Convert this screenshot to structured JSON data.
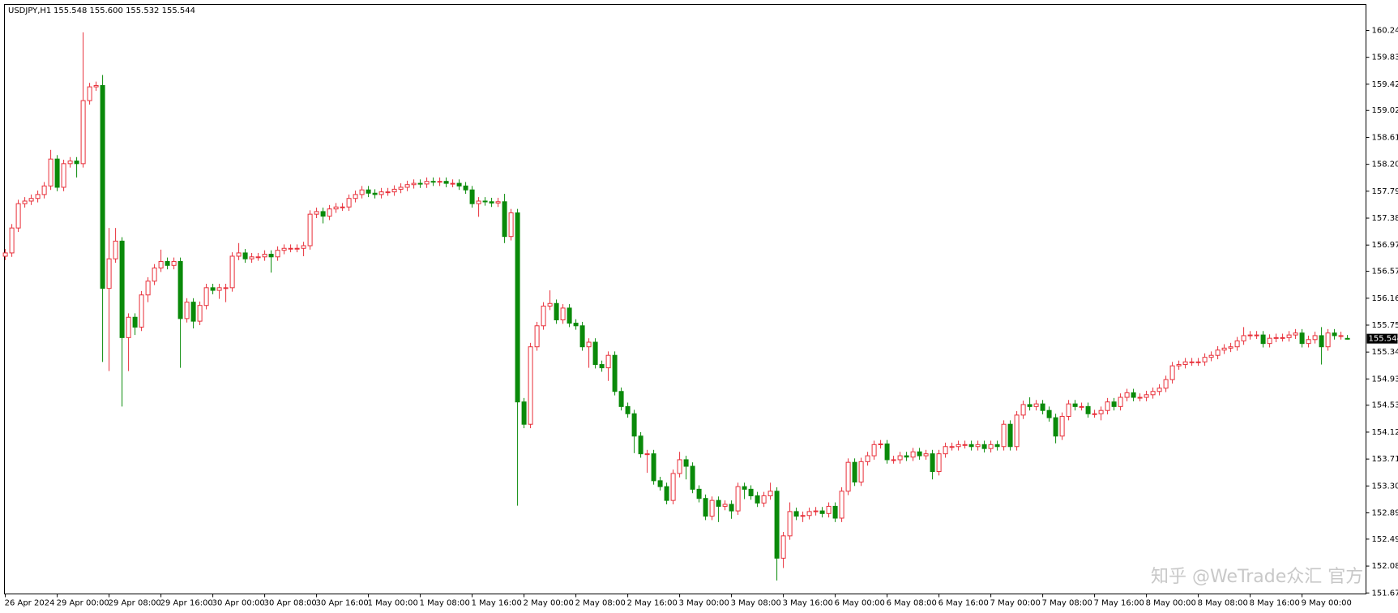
{
  "chart_data": {
    "type": "candlestick",
    "title": "USDJPY,H1",
    "title_values": "155.548 155.600 155.532 155.544",
    "watermark": "知乎 @WeTrade众汇 官方",
    "up_color": "#e8303a",
    "down_color": "#0a8a0a",
    "ylim": [
      151.655,
      160.635
    ],
    "yticks": [
      {
        "value": 151.67,
        "label": "151.670"
      },
      {
        "value": 152.08,
        "label": "152.080"
      },
      {
        "value": 152.49,
        "label": "152.490"
      },
      {
        "value": 152.89,
        "label": "152.890"
      },
      {
        "value": 153.3,
        "label": "153.300"
      },
      {
        "value": 153.71,
        "label": "153.710"
      },
      {
        "value": 154.12,
        "label": "154.120"
      },
      {
        "value": 154.53,
        "label": "154.530"
      },
      {
        "value": 154.93,
        "label": "154.930"
      },
      {
        "value": 155.34,
        "label": "155.340"
      },
      {
        "value": 155.75,
        "label": "155.750"
      },
      {
        "value": 156.16,
        "label": "156.160"
      },
      {
        "value": 156.57,
        "label": "156.570"
      },
      {
        "value": 156.97,
        "label": "156.970"
      },
      {
        "value": 157.38,
        "label": "157.380"
      },
      {
        "value": 157.79,
        "label": "157.790"
      },
      {
        "value": 158.2,
        "label": "158.200"
      },
      {
        "value": 158.61,
        "label": "158.610"
      },
      {
        "value": 159.02,
        "label": "159.020"
      },
      {
        "value": 159.42,
        "label": "159.420"
      },
      {
        "value": 159.83,
        "label": "159.830"
      },
      {
        "value": 160.24,
        "label": "160.240"
      }
    ],
    "last_price": {
      "value": 155.544,
      "label": "155.544"
    },
    "categories": [
      "26 Apr 2024",
      null,
      null,
      null,
      null,
      null,
      null,
      null,
      "29 Apr 00:00",
      null,
      null,
      null,
      null,
      null,
      null,
      null,
      "29 Apr 08:00",
      null,
      null,
      null,
      null,
      null,
      null,
      null,
      "29 Apr 16:00",
      null,
      null,
      null,
      null,
      null,
      null,
      null,
      "30 Apr 00:00",
      null,
      null,
      null,
      null,
      null,
      null,
      null,
      "30 Apr 08:00",
      null,
      null,
      null,
      null,
      null,
      null,
      null,
      "30 Apr 16:00",
      null,
      null,
      null,
      null,
      null,
      null,
      null,
      "1 May 00:00",
      null,
      null,
      null,
      null,
      null,
      null,
      null,
      "1 May 08:00",
      null,
      null,
      null,
      null,
      null,
      null,
      null,
      "1 May 16:00",
      null,
      null,
      null,
      null,
      null,
      null,
      null,
      "2 May 00:00",
      null,
      null,
      null,
      null,
      null,
      null,
      null,
      "2 May 08:00",
      null,
      null,
      null,
      null,
      null,
      null,
      null,
      "2 May 16:00",
      null,
      null,
      null,
      null,
      null,
      null,
      null,
      "3 May 00:00",
      null,
      null,
      null,
      null,
      null,
      null,
      null,
      "3 May 08:00",
      null,
      null,
      null,
      null,
      null,
      null,
      null,
      "3 May 16:00",
      null,
      null,
      null,
      null,
      null,
      null,
      null,
      "6 May 00:00",
      null,
      null,
      null,
      null,
      null,
      null,
      null,
      "6 May 08:00",
      null,
      null,
      null,
      null,
      null,
      null,
      null,
      "6 May 16:00",
      null,
      null,
      null,
      null,
      null,
      null,
      null,
      "7 May 00:00",
      null,
      null,
      null,
      null,
      null,
      null,
      null,
      "7 May 08:00",
      null,
      null,
      null,
      null,
      null,
      null,
      null,
      "7 May 16:00",
      null,
      null,
      null,
      null,
      null,
      null,
      null,
      "8 May 00:00",
      null,
      null,
      null,
      null,
      null,
      null,
      null,
      "8 May 08:00",
      null,
      null,
      null,
      null,
      null,
      null,
      null,
      "8 May 16:00",
      null,
      null,
      null,
      null,
      null,
      null,
      null,
      "9 May 00:00",
      null,
      null,
      null,
      null,
      null,
      null,
      null
    ],
    "open": [
      156.8,
      156.85,
      157.23,
      157.6,
      157.64,
      157.68,
      157.74,
      157.87,
      158.28,
      157.85,
      158.21,
      158.25,
      158.21,
      159.17,
      159.38,
      159.4,
      156.31,
      156.76,
      157.03,
      155.56,
      155.87,
      155.72,
      156.21,
      156.42,
      156.62,
      156.72,
      156.66,
      156.72,
      155.85,
      156.1,
      155.81,
      156.05,
      156.32,
      156.28,
      156.32,
      156.32,
      156.8,
      156.85,
      156.76,
      156.79,
      156.79,
      156.83,
      156.79,
      156.89,
      156.92,
      156.92,
      156.92,
      156.96,
      157.44,
      157.48,
      157.41,
      157.52,
      157.55,
      157.55,
      157.68,
      157.74,
      157.81,
      157.76,
      157.74,
      157.78,
      157.78,
      157.82,
      157.85,
      157.89,
      157.91,
      157.9,
      157.94,
      157.93,
      157.94,
      157.91,
      157.91,
      157.87,
      157.81,
      157.6,
      157.64,
      157.63,
      157.61,
      157.63,
      157.1,
      157.46,
      154.58,
      154.24,
      155.42,
      155.74,
      156.04,
      156.08,
      155.83,
      156.01,
      155.78,
      155.74,
      155.42,
      155.49,
      155.15,
      155.1,
      155.29,
      154.74,
      154.51,
      154.4,
      154.06,
      153.79,
      153.79,
      153.38,
      153.29,
      153.08,
      153.49,
      153.7,
      153.6,
      153.25,
      153.11,
      152.84,
      153.08,
      152.99,
      153.02,
      152.92,
      153.29,
      153.25,
      153.15,
      153.04,
      153.15,
      153.22,
      152.2,
      152.54,
      152.91,
      152.84,
      152.85,
      152.91,
      152.92,
      152.88,
      152.99,
      152.81,
      153.22,
      153.66,
      153.36,
      153.67,
      153.76,
      153.93,
      153.94,
      153.7,
      153.7,
      153.76,
      153.74,
      153.82,
      153.76,
      153.79,
      153.52,
      153.79,
      153.9,
      153.9,
      153.93,
      153.93,
      153.9,
      153.93,
      153.87,
      153.93,
      153.9,
      154.24,
      153.9,
      154.38,
      154.54,
      154.51,
      154.55,
      154.45,
      154.34,
      154.06,
      154.36,
      154.55,
      154.51,
      154.51,
      154.4,
      154.4,
      154.45,
      154.58,
      154.51,
      154.65,
      154.72,
      154.65,
      154.65,
      154.69,
      154.74,
      154.79,
      154.92,
      155.13,
      155.15,
      155.19,
      155.19,
      155.19,
      155.26,
      155.29,
      155.37,
      155.4,
      155.42,
      155.51,
      155.59,
      155.6,
      155.6,
      155.47,
      155.55,
      155.56,
      155.56,
      155.6,
      155.63,
      155.47,
      155.53,
      155.59,
      155.42,
      155.63,
      155.59,
      155.548
    ],
    "high": [
      156.91,
      157.29,
      157.66,
      157.7,
      157.74,
      157.8,
      157.93,
      158.42,
      158.34,
      158.27,
      158.31,
      158.31,
      160.21,
      159.44,
      159.46,
      159.56,
      157.23,
      157.23,
      157.09,
      155.93,
      155.93,
      156.27,
      156.48,
      156.68,
      156.9,
      156.78,
      156.78,
      156.78,
      156.16,
      156.16,
      156.11,
      156.38,
      156.38,
      156.38,
      156.38,
      156.86,
      157.0,
      156.91,
      156.85,
      156.85,
      156.89,
      156.89,
      156.95,
      156.98,
      156.98,
      156.98,
      157.02,
      157.5,
      157.54,
      157.54,
      157.58,
      157.61,
      157.61,
      157.74,
      157.8,
      157.87,
      157.87,
      157.82,
      157.84,
      157.84,
      157.88,
      157.91,
      157.95,
      157.97,
      157.97,
      158.0,
      158.0,
      158.0,
      158.0,
      157.97,
      157.97,
      157.93,
      157.87,
      157.7,
      157.7,
      157.69,
      157.69,
      157.75,
      157.52,
      157.52,
      154.64,
      155.48,
      155.8,
      156.1,
      156.28,
      156.14,
      156.07,
      156.07,
      155.84,
      155.8,
      155.55,
      155.55,
      155.21,
      155.35,
      155.35,
      154.8,
      154.57,
      154.46,
      154.12,
      153.85,
      153.85,
      153.44,
      153.35,
      153.55,
      153.82,
      153.76,
      153.66,
      153.31,
      153.17,
      153.14,
      153.14,
      153.08,
      153.08,
      153.35,
      153.35,
      153.31,
      153.21,
      153.21,
      153.35,
      153.28,
      152.6,
      153.05,
      152.97,
      152.91,
      152.97,
      152.98,
      152.98,
      153.05,
      153.05,
      153.28,
      153.72,
      153.72,
      153.73,
      153.82,
      153.99,
      154.0,
      154.0,
      153.76,
      153.82,
      153.82,
      153.88,
      153.88,
      153.85,
      153.85,
      153.85,
      153.96,
      153.96,
      153.99,
      153.99,
      153.99,
      153.99,
      153.99,
      153.99,
      153.99,
      154.3,
      154.3,
      154.44,
      154.6,
      154.65,
      154.61,
      154.61,
      154.51,
      154.4,
      154.42,
      154.61,
      154.61,
      154.57,
      154.57,
      154.46,
      154.51,
      154.64,
      154.64,
      154.71,
      154.78,
      154.78,
      154.71,
      154.75,
      154.8,
      154.85,
      154.98,
      155.19,
      155.21,
      155.25,
      155.25,
      155.25,
      155.32,
      155.35,
      155.43,
      155.46,
      155.48,
      155.57,
      155.72,
      155.66,
      155.66,
      155.66,
      155.61,
      155.62,
      155.62,
      155.66,
      155.69,
      155.69,
      155.59,
      155.65,
      155.72,
      155.69,
      155.69,
      155.65,
      155.6
    ],
    "low": [
      156.74,
      156.79,
      157.17,
      157.54,
      157.58,
      157.62,
      157.68,
      157.81,
      157.79,
      157.79,
      158.15,
      158.0,
      158.15,
      159.11,
      159.32,
      155.19,
      155.05,
      156.7,
      154.51,
      155.05,
      155.6,
      155.66,
      156.1,
      156.36,
      156.56,
      156.6,
      156.6,
      155.1,
      155.79,
      155.7,
      155.75,
      155.99,
      156.22,
      156.15,
      156.1,
      156.26,
      156.74,
      156.7,
      156.7,
      156.73,
      156.73,
      156.55,
      156.73,
      156.83,
      156.86,
      156.86,
      156.8,
      156.9,
      157.38,
      157.3,
      157.35,
      157.46,
      157.49,
      157.49,
      157.62,
      157.68,
      157.7,
      157.68,
      157.68,
      157.72,
      157.72,
      157.76,
      157.79,
      157.83,
      157.84,
      157.84,
      157.87,
      157.87,
      157.85,
      157.85,
      157.81,
      157.75,
      157.54,
      157.4,
      157.57,
      157.55,
      157.55,
      157.0,
      157.04,
      153.0,
      154.18,
      154.18,
      155.36,
      155.68,
      155.98,
      155.77,
      155.77,
      155.72,
      155.68,
      155.36,
      155.1,
      155.09,
      155.04,
      154.9,
      154.68,
      154.45,
      154.34,
      153.8,
      153.73,
      153.5,
      153.32,
      153.23,
      153.02,
      153.02,
      153.43,
      153.4,
      153.19,
      153.05,
      152.78,
      152.78,
      152.75,
      152.93,
      152.8,
      152.86,
      153.1,
      153.09,
      152.98,
      152.98,
      153.09,
      151.86,
      152.05,
      152.48,
      152.78,
      152.75,
      152.79,
      152.85,
      152.82,
      152.82,
      152.75,
      152.75,
      153.16,
      153.3,
      153.3,
      153.61,
      153.7,
      153.87,
      153.64,
      153.64,
      153.64,
      153.68,
      153.68,
      153.7,
      153.7,
      153.4,
      153.46,
      153.73,
      153.84,
      153.84,
      153.87,
      153.84,
      153.84,
      153.81,
      153.81,
      153.84,
      153.84,
      153.84,
      153.84,
      154.32,
      154.45,
      154.45,
      154.39,
      154.28,
      153.95,
      154.0,
      154.3,
      154.45,
      154.45,
      154.34,
      154.34,
      154.3,
      154.39,
      154.45,
      154.45,
      154.59,
      154.59,
      154.59,
      154.59,
      154.63,
      154.68,
      154.73,
      154.86,
      155.07,
      155.09,
      155.13,
      155.13,
      155.13,
      155.2,
      155.23,
      155.31,
      155.34,
      155.36,
      155.45,
      155.53,
      155.54,
      155.41,
      155.41,
      155.49,
      155.5,
      155.5,
      155.54,
      155.41,
      155.41,
      155.47,
      155.15,
      155.36,
      155.53,
      155.53,
      155.532
    ],
    "close": [
      156.85,
      157.23,
      157.6,
      157.64,
      157.68,
      157.74,
      157.87,
      158.28,
      157.85,
      158.21,
      158.25,
      158.21,
      159.17,
      159.38,
      159.4,
      156.31,
      156.76,
      157.03,
      155.56,
      155.87,
      155.72,
      156.21,
      156.42,
      156.62,
      156.72,
      156.66,
      156.72,
      155.85,
      156.1,
      155.81,
      156.05,
      156.32,
      156.28,
      156.32,
      156.32,
      156.8,
      156.85,
      156.76,
      156.79,
      156.79,
      156.83,
      156.79,
      156.89,
      156.92,
      156.92,
      156.92,
      156.96,
      157.44,
      157.48,
      157.41,
      157.52,
      157.55,
      157.55,
      157.68,
      157.74,
      157.81,
      157.76,
      157.74,
      157.78,
      157.78,
      157.82,
      157.85,
      157.89,
      157.91,
      157.9,
      157.94,
      157.93,
      157.94,
      157.91,
      157.91,
      157.87,
      157.81,
      157.6,
      157.64,
      157.63,
      157.61,
      157.63,
      157.1,
      157.46,
      154.58,
      154.24,
      155.42,
      155.74,
      156.04,
      156.08,
      155.83,
      156.01,
      155.78,
      155.74,
      155.42,
      155.49,
      155.15,
      155.1,
      155.29,
      154.74,
      154.51,
      154.4,
      154.06,
      153.79,
      153.79,
      153.38,
      153.29,
      153.08,
      153.49,
      153.7,
      153.6,
      153.25,
      153.11,
      152.84,
      153.08,
      152.99,
      153.02,
      152.92,
      153.29,
      153.25,
      153.15,
      153.04,
      153.15,
      153.22,
      152.2,
      152.54,
      152.91,
      152.84,
      152.85,
      152.91,
      152.92,
      152.88,
      152.99,
      152.81,
      153.22,
      153.66,
      153.36,
      153.67,
      153.76,
      153.93,
      153.94,
      153.7,
      153.7,
      153.76,
      153.74,
      153.82,
      153.76,
      153.79,
      153.52,
      153.79,
      153.9,
      153.9,
      153.93,
      153.93,
      153.9,
      153.93,
      153.87,
      153.93,
      153.9,
      154.24,
      153.9,
      154.38,
      154.54,
      154.51,
      154.55,
      154.45,
      154.34,
      154.06,
      154.36,
      154.55,
      154.51,
      154.51,
      154.4,
      154.4,
      154.45,
      154.58,
      154.51,
      154.65,
      154.72,
      154.65,
      154.65,
      154.69,
      154.74,
      154.79,
      154.92,
      155.13,
      155.15,
      155.19,
      155.19,
      155.19,
      155.26,
      155.29,
      155.37,
      155.4,
      155.42,
      155.51,
      155.59,
      155.6,
      155.6,
      155.47,
      155.55,
      155.56,
      155.56,
      155.6,
      155.63,
      155.47,
      155.53,
      155.59,
      155.42,
      155.63,
      155.59,
      155.59,
      155.544
    ]
  }
}
